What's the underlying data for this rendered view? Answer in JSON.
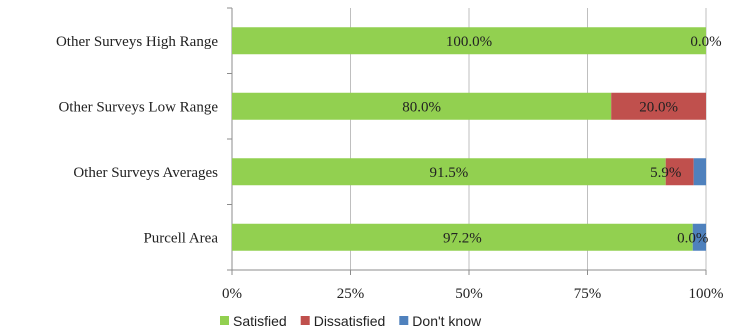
{
  "chart_data": {
    "type": "bar",
    "orientation": "horizontal",
    "stacked": true,
    "title": "",
    "xlabel": "",
    "ylabel": "",
    "xlim": [
      0,
      100
    ],
    "x_ticks": [
      "0%",
      "25%",
      "50%",
      "75%",
      "100%"
    ],
    "x_tick_values": [
      0,
      25,
      50,
      75,
      100
    ],
    "grid": true,
    "legend_position": "bottom",
    "categories": [
      "Other Surveys High Range",
      "Other Surveys Low Range",
      "Other Surveys Averages",
      "Purcell Area"
    ],
    "series": [
      {
        "name": "Satisfied",
        "color": "#92d050",
        "values": [
          100.0,
          80.0,
          91.5,
          97.2
        ]
      },
      {
        "name": "Dissatisfied",
        "color": "#c0504d",
        "values": [
          0.0,
          20.0,
          5.9,
          0.0
        ]
      },
      {
        "name": "Don't know",
        "color": "#4f81bd",
        "values": [
          0.0,
          0.0,
          2.6,
          2.8
        ]
      }
    ],
    "data_labels": [
      [
        {
          "series": "Satisfied",
          "text": "100.0%"
        },
        {
          "series": "Dissatisfied",
          "text": "0.0%"
        }
      ],
      [
        {
          "series": "Satisfied",
          "text": "80.0%"
        },
        {
          "series": "Dissatisfied",
          "text": "20.0%"
        }
      ],
      [
        {
          "series": "Satisfied",
          "text": "91.5%"
        },
        {
          "series": "Dissatisfied",
          "text": "5.9%"
        }
      ],
      [
        {
          "series": "Satisfied",
          "text": "97.2%"
        },
        {
          "series": "Dissatisfied",
          "text": "0.0%"
        }
      ]
    ]
  }
}
